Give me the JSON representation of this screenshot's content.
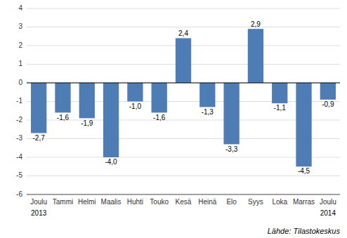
{
  "chart_data": {
    "type": "bar",
    "categories": [
      "Joulu",
      "Tammi",
      "Helmi",
      "Maalis",
      "Huhti",
      "Touko",
      "Kesä",
      "Heinä",
      "Elo",
      "Syys",
      "Loka",
      "Marras",
      "Joulu"
    ],
    "values": [
      -2.7,
      -1.6,
      -1.9,
      -4.0,
      -1.0,
      -1.6,
      2.4,
      -1.3,
      -3.3,
      2.9,
      -1.1,
      -4.5,
      -0.9
    ],
    "value_labels": [
      "-2,7",
      "-1,6",
      "-1,9",
      "-4,0",
      "-1,0",
      "-1,6",
      "2,4",
      "-1,3",
      "-3,3",
      "2,9",
      "-1,1",
      "-4,5",
      "-0,9"
    ],
    "color": "#4e7db5",
    "ylim": [
      -6,
      4
    ],
    "yticks": [
      -6,
      -5,
      -4,
      -3,
      -2,
      -1,
      0,
      1,
      2,
      3,
      4
    ],
    "grid": true,
    "data_labels": true,
    "annotations": [
      {
        "text": "2013",
        "x": 0
      },
      {
        "text": "2014",
        "x": 12
      },
      {
        "text": "Lähde: Tilastokeskus"
      }
    ]
  }
}
